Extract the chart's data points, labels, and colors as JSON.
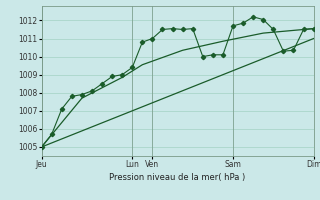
{
  "bg_color": "#cbe8e8",
  "grid_color": "#99ccbb",
  "line_color": "#1a5c2a",
  "title": "Pression niveau de la mer( hPa )",
  "ylim": [
    1004.5,
    1012.8
  ],
  "yticks": [
    1005,
    1006,
    1007,
    1008,
    1009,
    1010,
    1011,
    1012
  ],
  "series1_x": [
    0,
    1,
    2,
    3,
    4,
    5,
    6,
    7,
    8,
    9,
    10,
    11,
    12,
    13,
    14,
    15,
    16,
    17,
    18,
    19,
    20,
    21,
    22,
    23,
    24,
    25,
    26,
    27
  ],
  "series1_y": [
    1005.0,
    1005.7,
    1007.1,
    1007.8,
    1007.9,
    1008.1,
    1008.5,
    1008.9,
    1009.0,
    1009.4,
    1010.8,
    1011.0,
    1011.5,
    1011.55,
    1011.5,
    1011.55,
    1010.0,
    1010.1,
    1010.1,
    1011.7,
    1011.85,
    1012.2,
    1012.05,
    1011.5,
    1010.3,
    1010.35,
    1011.5,
    1011.55
  ],
  "series2_x": [
    0,
    4,
    8,
    10,
    14,
    18,
    22,
    27
  ],
  "series2_y": [
    1005.0,
    1007.7,
    1008.85,
    1009.55,
    1010.35,
    1010.85,
    1011.3,
    1011.55
  ],
  "series3_x": [
    0,
    27
  ],
  "series3_y": [
    1005.0,
    1011.0
  ],
  "vline_positions": [
    0,
    9,
    11,
    19,
    27
  ],
  "xtick_positions": [
    0,
    9,
    11,
    19,
    27
  ],
  "xtick_labels": [
    "Jeu",
    "Lun",
    "Ven",
    "Sam",
    "Dim"
  ]
}
